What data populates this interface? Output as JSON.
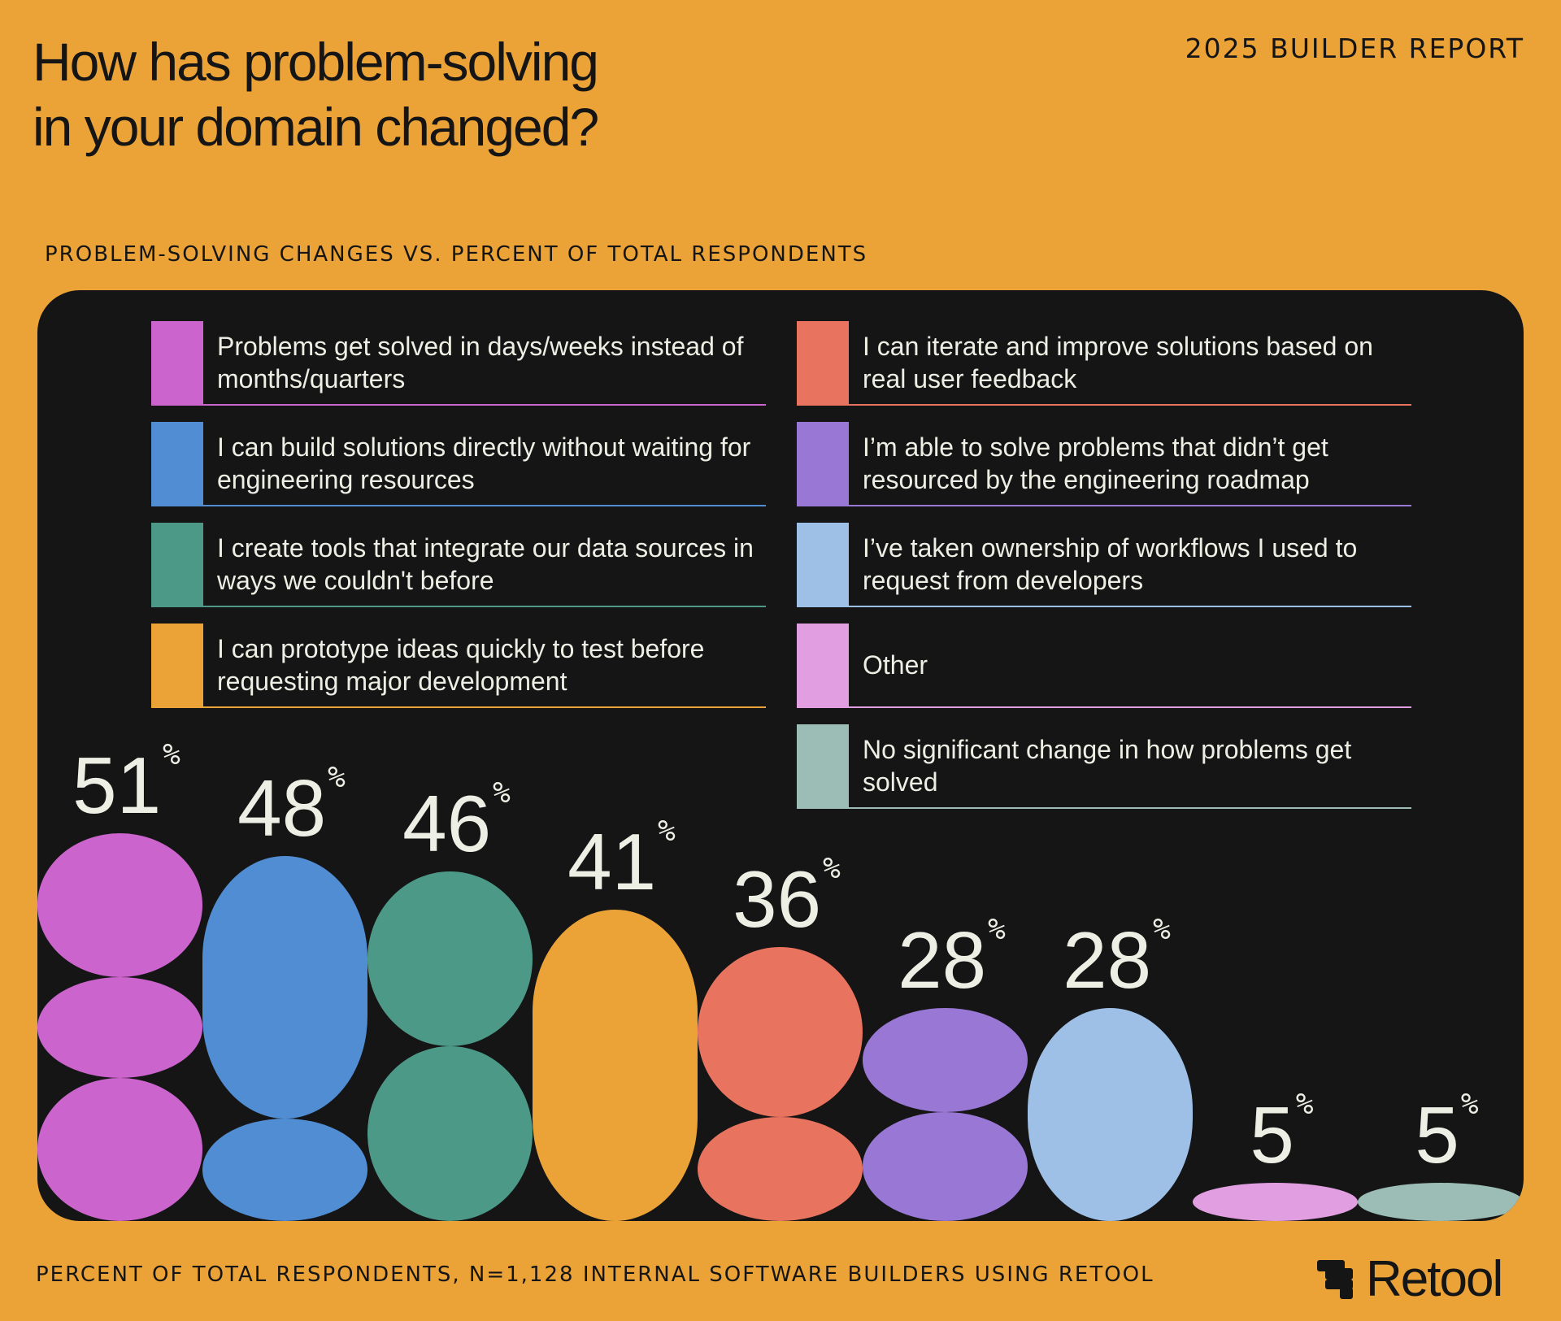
{
  "header": {
    "title_line1": "How has problem-solving",
    "title_line2": "in your domain changed?",
    "report": "2025 BUILDER REPORT"
  },
  "subtitle": "PROBLEM-SOLVING CHANGES VS. PERCENT OF TOTAL RESPONDENTS",
  "footer": "PERCENT OF TOTAL RESPONDENTS, N=1,128 INTERNAL SOFTWARE BUILDERS USING RETOOL",
  "logo": {
    "text": "Retool",
    "icon": "retool-logo-icon"
  },
  "colors": {
    "background": "#EBA338",
    "panel": "#151515",
    "text": "#EDEEE4"
  },
  "chart_data": {
    "type": "bar",
    "title": "PROBLEM-SOLVING CHANGES VS. PERCENT OF TOTAL RESPONDENTS",
    "unit": "%",
    "legend_position": "top",
    "grid": false,
    "categories": [
      "Problems get solved in days/weeks instead of months/quarters",
      "I can build solutions directly without waiting for engineering resources",
      "I create tools that integrate our data sources in ways we couldn't before",
      "I can prototype ideas quickly to test before requesting major development",
      "I can iterate and improve solutions based on real user feedback",
      "I’m able to solve problems that didn’t get resourced by the engineering roadmap",
      "I’ve taken ownership of workflows I used to request from developers",
      "Other",
      "No significant change in how problems get solved"
    ],
    "values": [
      51,
      48,
      46,
      41,
      36,
      28,
      28,
      5,
      5
    ],
    "colors": [
      "#CB64CC",
      "#518DD3",
      "#4C9988",
      "#EBA338",
      "#E8735F",
      "#9878D4",
      "#9EBFE6",
      "#E19FE1",
      "#9CBDB6"
    ],
    "ylim": [
      0,
      100
    ]
  }
}
